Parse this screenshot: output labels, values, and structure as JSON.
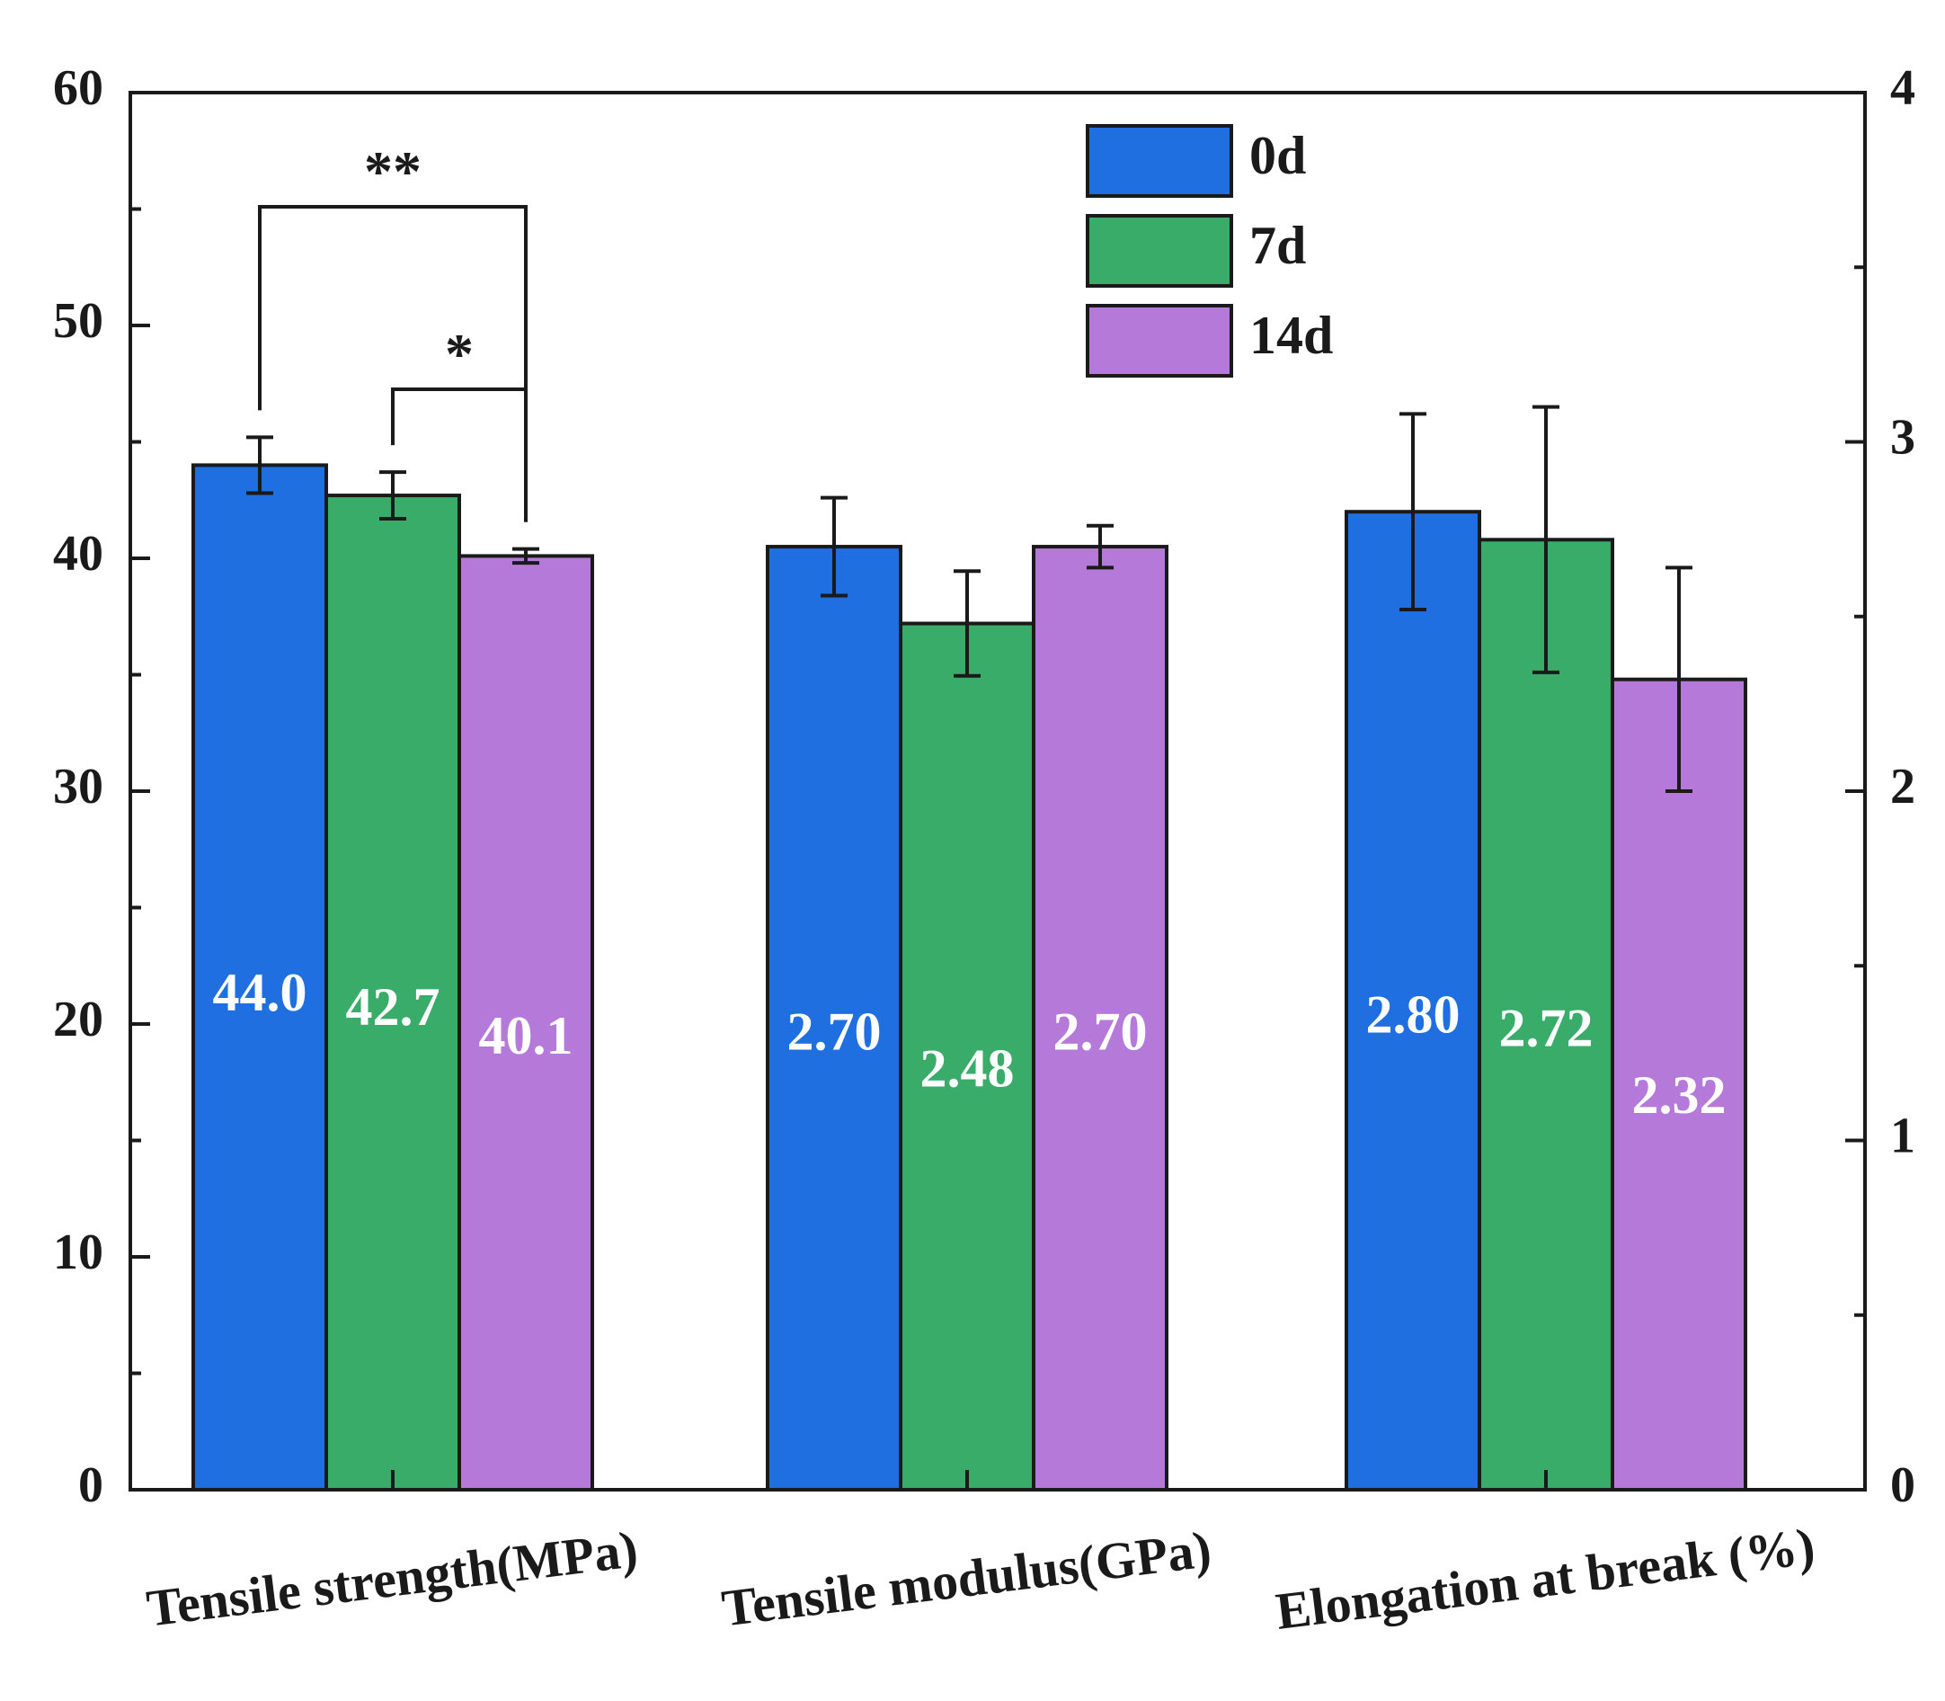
{
  "chart_data": {
    "type": "bar",
    "categories": [
      "Tensile strength(MPa)",
      "Tensile modulus(GPa)",
      "Elongation at break (%)"
    ],
    "category_axis": [
      "left",
      "right",
      "right"
    ],
    "series": [
      {
        "name": "0d",
        "color": "#1f6fe0",
        "values": [
          44.0,
          2.7,
          2.8
        ],
        "errors": [
          1.2,
          0.14,
          0.28
        ],
        "labels": [
          "44.0",
          "2.70",
          "2.80"
        ]
      },
      {
        "name": "7d",
        "color": "#3aac6a",
        "values": [
          42.7,
          2.48,
          2.72
        ],
        "errors": [
          1.0,
          0.15,
          0.38
        ],
        "labels": [
          "42.7",
          "2.48",
          "2.72"
        ]
      },
      {
        "name": "14d",
        "color": "#b57ad9",
        "values": [
          40.1,
          2.7,
          2.32
        ],
        "errors": [
          0.3,
          0.06,
          0.32
        ],
        "labels": [
          "40.1",
          "2.70",
          "2.32"
        ]
      }
    ],
    "left_axis": {
      "min": 0,
      "max": 60,
      "major_ticks": [
        0,
        10,
        20,
        30,
        40,
        50,
        60
      ],
      "tick_labels": [
        "0",
        "10",
        "20",
        "30",
        "40",
        "50",
        "60"
      ]
    },
    "right_axis": {
      "min": 0,
      "max": 4,
      "major_ticks": [
        0,
        1,
        2,
        3,
        4
      ],
      "tick_labels": [
        "0",
        "1",
        "2",
        "3",
        "4"
      ]
    },
    "significance": [
      {
        "category": 0,
        "from_series": 0,
        "to_series": 2,
        "label": "**"
      },
      {
        "category": 0,
        "from_series": 1,
        "to_series": 2,
        "label": "*"
      }
    ],
    "legend": {
      "position": "top-center",
      "entries": [
        "0d",
        "7d",
        "14d"
      ]
    },
    "title": "",
    "grid": false
  }
}
